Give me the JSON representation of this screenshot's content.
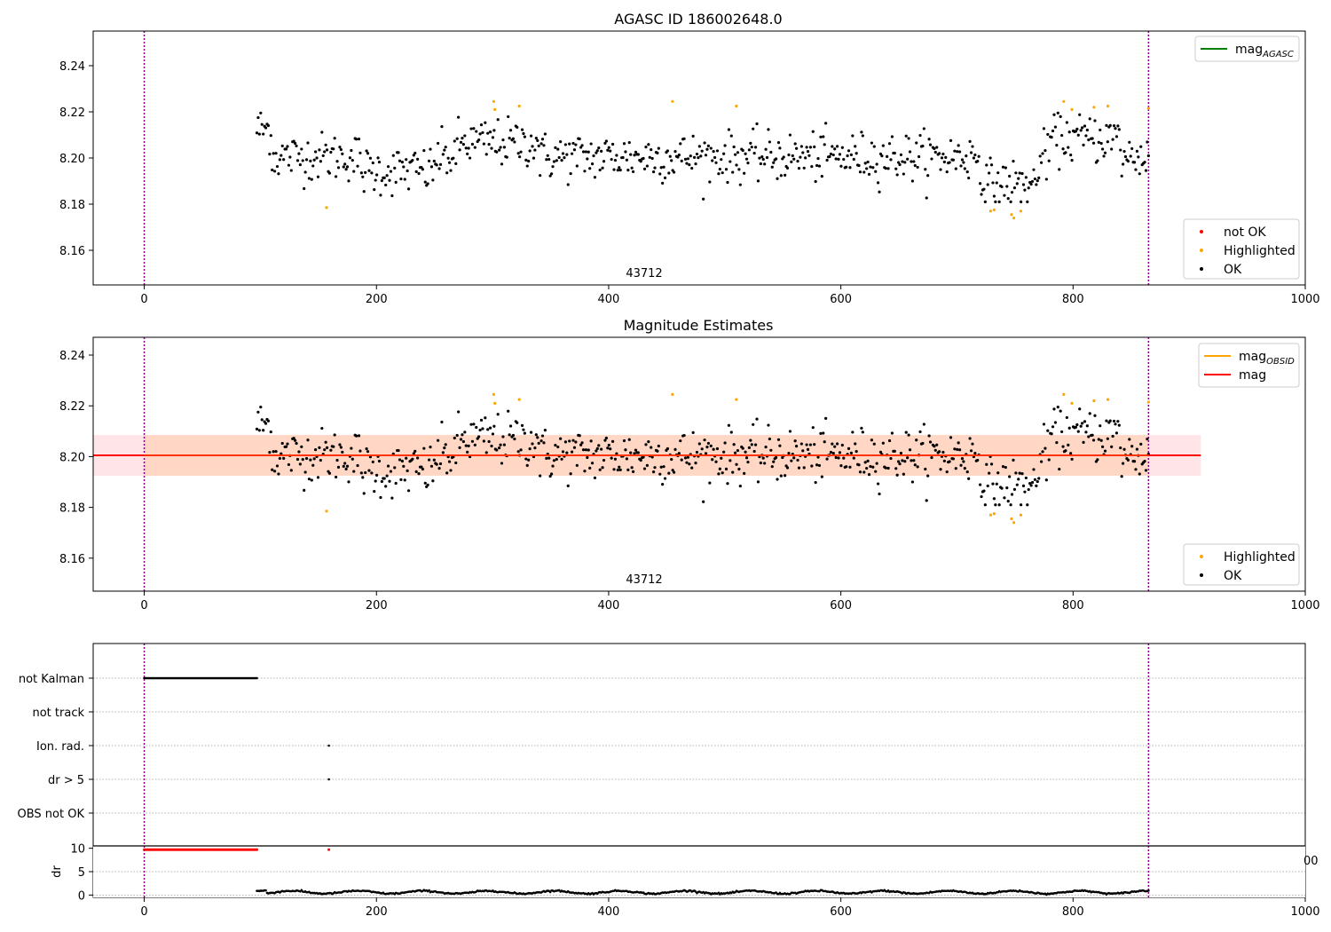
{
  "chart_data": [
    {
      "type": "scatter",
      "title": "AGASC ID 186002648.0",
      "xlim": [
        -44,
        1000
      ],
      "ylim": [
        8.145,
        8.255
      ],
      "xticks": [
        0,
        200,
        400,
        600,
        800,
        1000
      ],
      "yticks": [
        8.16,
        8.18,
        8.2,
        8.22,
        8.24
      ],
      "ytick_labels": [
        "8.16",
        "8.18",
        "8.20",
        "8.22",
        "8.24"
      ],
      "vlines": [
        0,
        865
      ],
      "annotation": "43712",
      "legends": [
        {
          "placement": "upper right",
          "entries": [
            {
              "label": "mag",
              "sub": "AGASC",
              "color": "#008000",
              "kind": "line"
            }
          ]
        },
        {
          "placement": "lower right",
          "entries": [
            {
              "label": "not OK",
              "color": "#ff0000",
              "kind": "marker"
            },
            {
              "label": "Highlighted",
              "color": "#ffa500",
              "kind": "marker"
            },
            {
              "label": "OK",
              "color": "#000000",
              "kind": "marker"
            }
          ]
        }
      ],
      "series": [
        {
          "name": "OK",
          "color": "#000000",
          "x_range": [
            97,
            865
          ],
          "y_mean": 8.2005,
          "y_spread": 0.007
        },
        {
          "name": "Highlighted",
          "color": "#ffa500",
          "points": [
            [
              157,
              8.1785
            ],
            [
              301,
              8.2245
            ],
            [
              302,
              8.221
            ],
            [
              323,
              8.2225
            ],
            [
              455,
              8.2245
            ],
            [
              510,
              8.2225
            ],
            [
              729,
              8.177
            ],
            [
              732,
              8.1775
            ],
            [
              747,
              8.1755
            ],
            [
              749,
              8.174
            ],
            [
              755,
              8.177
            ],
            [
              792,
              8.2245
            ],
            [
              799,
              8.221
            ],
            [
              818,
              8.222
            ],
            [
              830,
              8.2225
            ],
            [
              865,
              8.2215
            ]
          ]
        }
      ]
    },
    {
      "type": "scatter",
      "title": "Magnitude Estimates",
      "xlim": [
        -44,
        1000
      ],
      "ylim": [
        8.147,
        8.247
      ],
      "xticks": [
        0,
        200,
        400,
        600,
        800,
        1000
      ],
      "yticks": [
        8.16,
        8.18,
        8.2,
        8.22,
        8.24
      ],
      "ytick_labels": [
        "8.16",
        "8.18",
        "8.20",
        "8.22",
        "8.24"
      ],
      "vlines": [
        0,
        865
      ],
      "annotation": "43712",
      "mag_line": {
        "y": 8.2005,
        "x_range": [
          -44,
          910
        ],
        "color": "#ff0000"
      },
      "mag_band": {
        "y_range": [
          8.1925,
          8.2085
        ],
        "x_range": [
          -44,
          910
        ],
        "color": "#ffb3bd"
      },
      "obsid_band": {
        "y_range": [
          8.1925,
          8.2085
        ],
        "x_range": [
          0,
          865
        ],
        "color": "#ffc79a"
      },
      "legends": [
        {
          "placement": "upper right",
          "entries": [
            {
              "label": "mag",
              "sub": "OBSID",
              "color": "#ffa500",
              "kind": "line"
            },
            {
              "label": "mag",
              "sub": "",
              "color": "#ff0000",
              "kind": "line"
            }
          ]
        },
        {
          "placement": "lower right",
          "entries": [
            {
              "label": "Highlighted",
              "color": "#ffa500",
              "kind": "marker"
            },
            {
              "label": "OK",
              "color": "#000000",
              "kind": "marker"
            }
          ]
        }
      ]
    },
    {
      "type": "scatter",
      "title": "",
      "xlim": [
        -44,
        1000
      ],
      "flag_categories": [
        "not Kalman",
        "not track",
        "Ion. rad.",
        "dr > 5",
        "OBS not OK"
      ],
      "flag_points": [
        {
          "category": "not Kalman",
          "x_range": [
            0,
            97
          ],
          "step": 1
        },
        {
          "category": "Ion. rad.",
          "x": [
            159
          ]
        },
        {
          "category": "dr > 5",
          "x": [
            159
          ]
        }
      ],
      "vlines": [
        0,
        865
      ]
    },
    {
      "type": "scatter",
      "title": "",
      "xlim": [
        -44,
        1000
      ],
      "ylim": [
        -0.5,
        10.5
      ],
      "ylabel": "dr",
      "xticks": [
        0,
        200,
        400,
        600,
        800,
        1000
      ],
      "yticks": [
        0,
        5,
        10
      ],
      "ytick_labels": [
        "0",
        "5",
        "10"
      ],
      "red_points": {
        "x_range": [
          0,
          97
        ],
        "y": 9.7,
        "extra_x": [
          159
        ],
        "color": "#ff0000"
      },
      "black_points": {
        "x_range": [
          97,
          865
        ],
        "y_mean": 0.6,
        "y_spread": 0.35,
        "color": "#000000"
      },
      "vlines": [
        0,
        865
      ],
      "clipped_label": "00"
    }
  ]
}
